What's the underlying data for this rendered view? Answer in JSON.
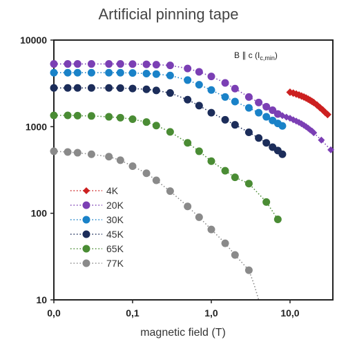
{
  "chart_data": {
    "type": "scatter",
    "title": "Artificial pinning tape",
    "xlabel": "magnetic field (T)",
    "ylabel": "",
    "xscale": "log",
    "yscale": "log",
    "xlim": [
      0.01,
      35
    ],
    "ylim": [
      10,
      10000
    ],
    "x_tick_labels": [
      "0,0",
      "0,1",
      "1,0",
      "10,0"
    ],
    "y_tick_labels": [
      "10",
      "100",
      "1000",
      "10000"
    ],
    "grid": false,
    "legend_position": "bottom-left",
    "annotation": {
      "main": "B ∥ c (I",
      "sub": "c,min",
      "close": ")"
    },
    "series": [
      {
        "name": "4K",
        "color": "#cc2020",
        "marker": "diamond",
        "x": [
          10,
          11,
          12,
          13,
          14,
          15,
          16,
          17,
          18,
          19,
          20,
          22,
          24,
          26,
          28,
          30
        ],
        "y": [
          2500,
          2440,
          2380,
          2320,
          2260,
          2200,
          2140,
          2080,
          2020,
          1960,
          1900,
          1780,
          1660,
          1560,
          1460,
          1380
        ]
      },
      {
        "name": "20K",
        "color": "#7b3fb4",
        "marker": "circle",
        "x": [
          0.01,
          0.015,
          0.02,
          0.03,
          0.05,
          0.07,
          0.1,
          0.15,
          0.2,
          0.3,
          0.5,
          0.7,
          1,
          1.5,
          2,
          3,
          4,
          5,
          6,
          7
        ],
        "y": [
          5300,
          5300,
          5300,
          5300,
          5300,
          5300,
          5280,
          5250,
          5200,
          5100,
          4700,
          4300,
          3800,
          3200,
          2750,
          2200,
          1900,
          1700,
          1550,
          1400
        ],
        "tail_x": [
          8,
          9,
          10,
          11,
          12,
          13,
          14,
          15,
          16,
          17,
          18,
          19,
          20,
          25,
          33
        ],
        "tail_y": [
          1340,
          1290,
          1250,
          1200,
          1160,
          1120,
          1080,
          1040,
          1000,
          960,
          920,
          890,
          850,
          700,
          540
        ]
      },
      {
        "name": "30K",
        "color": "#1a82c8",
        "marker": "circle",
        "x": [
          0.01,
          0.015,
          0.02,
          0.03,
          0.05,
          0.07,
          0.1,
          0.15,
          0.2,
          0.3,
          0.5,
          0.7,
          1,
          1.5,
          2,
          3,
          4,
          5,
          6,
          7,
          8
        ],
        "y": [
          4200,
          4200,
          4200,
          4200,
          4200,
          4200,
          4170,
          4100,
          4050,
          3900,
          3450,
          3050,
          2650,
          2200,
          1950,
          1650,
          1450,
          1300,
          1180,
          1090,
          1020
        ]
      },
      {
        "name": "45K",
        "color": "#1c2d5a",
        "marker": "circle",
        "x": [
          0.01,
          0.015,
          0.02,
          0.03,
          0.05,
          0.07,
          0.1,
          0.15,
          0.2,
          0.3,
          0.5,
          0.7,
          1,
          1.5,
          2,
          3,
          4,
          5,
          6,
          7,
          8
        ],
        "y": [
          2800,
          2800,
          2800,
          2800,
          2800,
          2790,
          2760,
          2700,
          2620,
          2450,
          2050,
          1750,
          1450,
          1200,
          1050,
          860,
          740,
          650,
          580,
          530,
          480
        ]
      },
      {
        "name": "65K",
        "color": "#4a8c34",
        "marker": "circle",
        "x": [
          0.01,
          0.015,
          0.02,
          0.03,
          0.05,
          0.07,
          0.1,
          0.15,
          0.2,
          0.3,
          0.5,
          0.7,
          1,
          1.5,
          2,
          3,
          5,
          7
        ],
        "y": [
          1350,
          1350,
          1340,
          1330,
          1300,
          1270,
          1220,
          1130,
          1030,
          870,
          650,
          520,
          400,
          310,
          260,
          220,
          135,
          85
        ]
      },
      {
        "name": "77K",
        "color": "#8a8a8a",
        "marker": "circle",
        "x": [
          0.01,
          0.015,
          0.02,
          0.03,
          0.05,
          0.07,
          0.1,
          0.15,
          0.2,
          0.3,
          0.5,
          0.7,
          1,
          1.5,
          2,
          3
        ],
        "y": [
          520,
          510,
          500,
          480,
          450,
          410,
          350,
          290,
          240,
          180,
          120,
          90,
          65,
          45,
          33,
          22
        ],
        "tail_x": [
          3.5,
          4
        ],
        "tail_y": [
          15,
          10
        ]
      }
    ]
  }
}
